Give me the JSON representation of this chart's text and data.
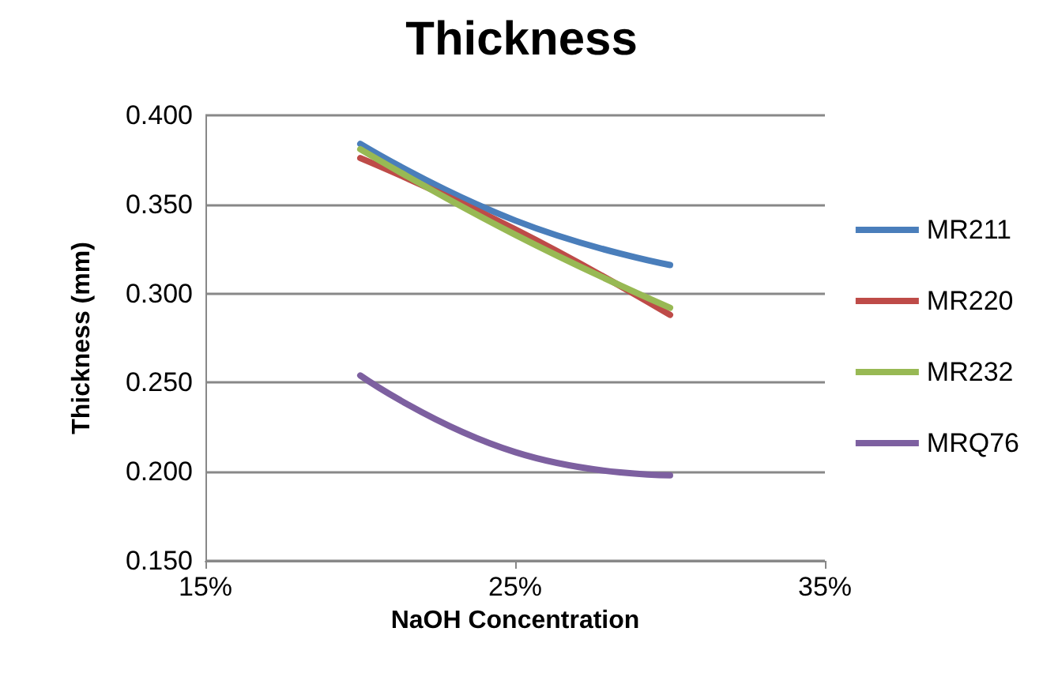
{
  "chart_data": {
    "type": "line",
    "title": "Thickness",
    "xlabel": "NaOH Concentration",
    "ylabel": "Thickness (mm)",
    "x": [
      20,
      25,
      30
    ],
    "series": [
      {
        "name": "MR211",
        "color": "#4a7ebb",
        "values": [
          0.384,
          0.341,
          0.316
        ]
      },
      {
        "name": "MR220",
        "color": "#be4b48",
        "values": [
          0.376,
          0.336,
          0.288
        ]
      },
      {
        "name": "MR232",
        "color": "#98b954",
        "values": [
          0.381,
          0.333,
          0.292
        ]
      },
      {
        "name": "MRQ76",
        "color": "#7d60a0",
        "values": [
          0.254,
          0.211,
          0.198
        ]
      }
    ],
    "xlim": [
      15,
      35
    ],
    "xticks": [
      {
        "value": 15,
        "label": "15%"
      },
      {
        "value": 25,
        "label": "25%"
      },
      {
        "value": 35,
        "label": "35%"
      }
    ],
    "ylim": [
      0.15,
      0.4
    ],
    "yticks": [
      {
        "value": 0.15,
        "label": "0.150"
      },
      {
        "value": 0.2,
        "label": "0.200"
      },
      {
        "value": 0.25,
        "label": "0.250"
      },
      {
        "value": 0.3,
        "label": "0.300"
      },
      {
        "value": 0.35,
        "label": "0.350"
      },
      {
        "value": 0.4,
        "label": "0.400"
      }
    ],
    "grid": "y",
    "legend": "right",
    "marker": "none",
    "line_style": "solid"
  }
}
